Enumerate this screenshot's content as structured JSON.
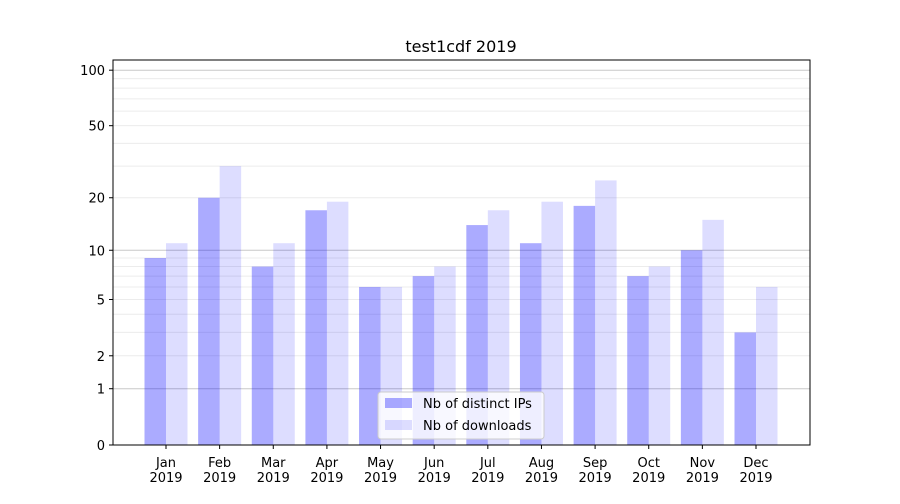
{
  "chart_data": {
    "type": "bar",
    "title": "test1cdf 2019",
    "xlabel": "",
    "ylabel": "",
    "yscale": "log(1+x)",
    "ylim": [
      0,
      110
    ],
    "yticks": [
      0,
      1,
      2,
      5,
      10,
      20,
      50,
      100
    ],
    "ytick_labels": [
      "0",
      "1",
      "2",
      "5",
      "10",
      "20",
      "50",
      "100"
    ],
    "categories": [
      "Jan\n2019",
      "Feb\n2019",
      "Mar\n2019",
      "Apr\n2019",
      "May\n2019",
      "Jun\n2019",
      "Jul\n2019",
      "Aug\n2019",
      "Sep\n2019",
      "Oct\n2019",
      "Nov\n2019",
      "Dec\n2019"
    ],
    "category_months": [
      "Jan",
      "Feb",
      "Mar",
      "Apr",
      "May",
      "Jun",
      "Jul",
      "Aug",
      "Sep",
      "Oct",
      "Nov",
      "Dec"
    ],
    "category_years": [
      "2019",
      "2019",
      "2019",
      "2019",
      "2019",
      "2019",
      "2019",
      "2019",
      "2019",
      "2019",
      "2019",
      "2019"
    ],
    "series": [
      {
        "name": "Nb of distinct IPs",
        "color": "#aaaaff",
        "values": [
          9,
          20,
          8,
          17,
          6,
          7,
          14,
          11,
          18,
          7,
          10,
          3
        ]
      },
      {
        "name": "Nb of downloads",
        "color": "#ddddff",
        "values": [
          11,
          30,
          11,
          19,
          6,
          8,
          17,
          19,
          25,
          8,
          15,
          6
        ]
      }
    ],
    "grid": true,
    "legend_position": "bottom-center"
  }
}
